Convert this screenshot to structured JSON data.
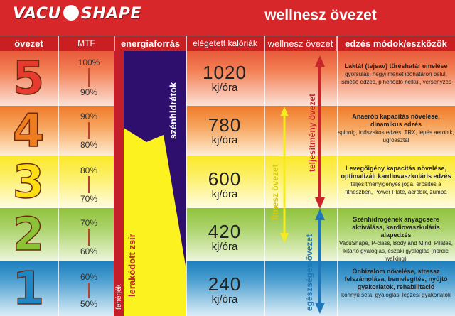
{
  "brand": {
    "logo_left": "VACU",
    "logo_right": "SHAPE"
  },
  "title": "wellnesz övezet",
  "headers": {
    "zone": "övezet",
    "mtf": "MTF",
    "energy": "energiaforrás",
    "calories": "elégetett kalóriák",
    "wellness": "wellnesz övezet",
    "methods": "edzés módok/eszközök"
  },
  "colors": {
    "header_red": "#d8272b",
    "carbs_purple": "#2e0f6e",
    "fat_yellow": "#fbf21f",
    "protein_red": "#c41e2a",
    "performance_arrow": "#c8262b",
    "fitness_arrow": "#f4ec20",
    "health_arrow": "#1f76b8"
  },
  "energy_labels": {
    "carbs": "szénhidrátok",
    "fat": "lerakódott zsír",
    "protein": "fehérjék"
  },
  "wellness_labels": {
    "performance": "teljesítmény övezet",
    "fitness": "fitnesz övezet",
    "health": "egészséges övezet"
  },
  "chart_data": {
    "type": "table",
    "title": "wellnesz övezet",
    "columns": [
      "övezet",
      "MTF",
      "energiaforrás",
      "elégetett kalóriák",
      "wellnesz övezet",
      "edzés módok/eszközök"
    ],
    "zones": [
      {
        "zone": "5",
        "mtf_high": "100%",
        "mtf_low": "90%",
        "kcal": "1020",
        "unit": "kj/óra",
        "color": "#e63b2e",
        "method_title": "Laktát (tejsav) tűréshatár emelése",
        "method_detail": "gyorsulás, hegyi menet időhatáron belül, ismétlő edzés, pihenőidő nélkül, versenyzés"
      },
      {
        "zone": "4",
        "mtf_high": "90%",
        "mtf_low": "80%",
        "kcal": "780",
        "unit": "kj/óra",
        "color": "#ee7d1f",
        "method_title": "Anaerób kapacitás növelése, dinamikus edzés",
        "method_detail": "spinnig, időszakos edzés, TRX, lépés aerobik, ugróasztal"
      },
      {
        "zone": "3",
        "mtf_high": "80%",
        "mtf_low": "70%",
        "kcal": "600",
        "unit": "kj/óra",
        "color": "#fbdf12",
        "method_title": "Levegőigény kapacitás növelése, optimalizált kardiovaszkuláris edzés",
        "method_detail": "teljesítményigényes jóga, erősítés a fitneszben, Power Plate, aerobik, zumba"
      },
      {
        "zone": "2",
        "mtf_high": "70%",
        "mtf_low": "60%",
        "kcal": "420",
        "unit": "kj/óra",
        "color": "#8cc236",
        "method_title": "Szénhidrogének anyagcsere aktiválása, kardiovaszkuláris alapedzés",
        "method_detail": "VacuShape, P-class, Body and Mind, Pilates, kitartó gyaloglás, északi gyaloglás (nordic walking)"
      },
      {
        "zone": "1",
        "mtf_high": "60%",
        "mtf_low": "50%",
        "kcal": "240",
        "unit": "kj/óra",
        "color": "#1f86c6",
        "method_title": "Önbizalom növelése, stressz felszámolása, bemelegítés, nyújtó gyakorlatok, rehabilitáció",
        "method_detail": "könnyű séta, gyaloglás, légzési gyakorlatok"
      }
    ]
  }
}
